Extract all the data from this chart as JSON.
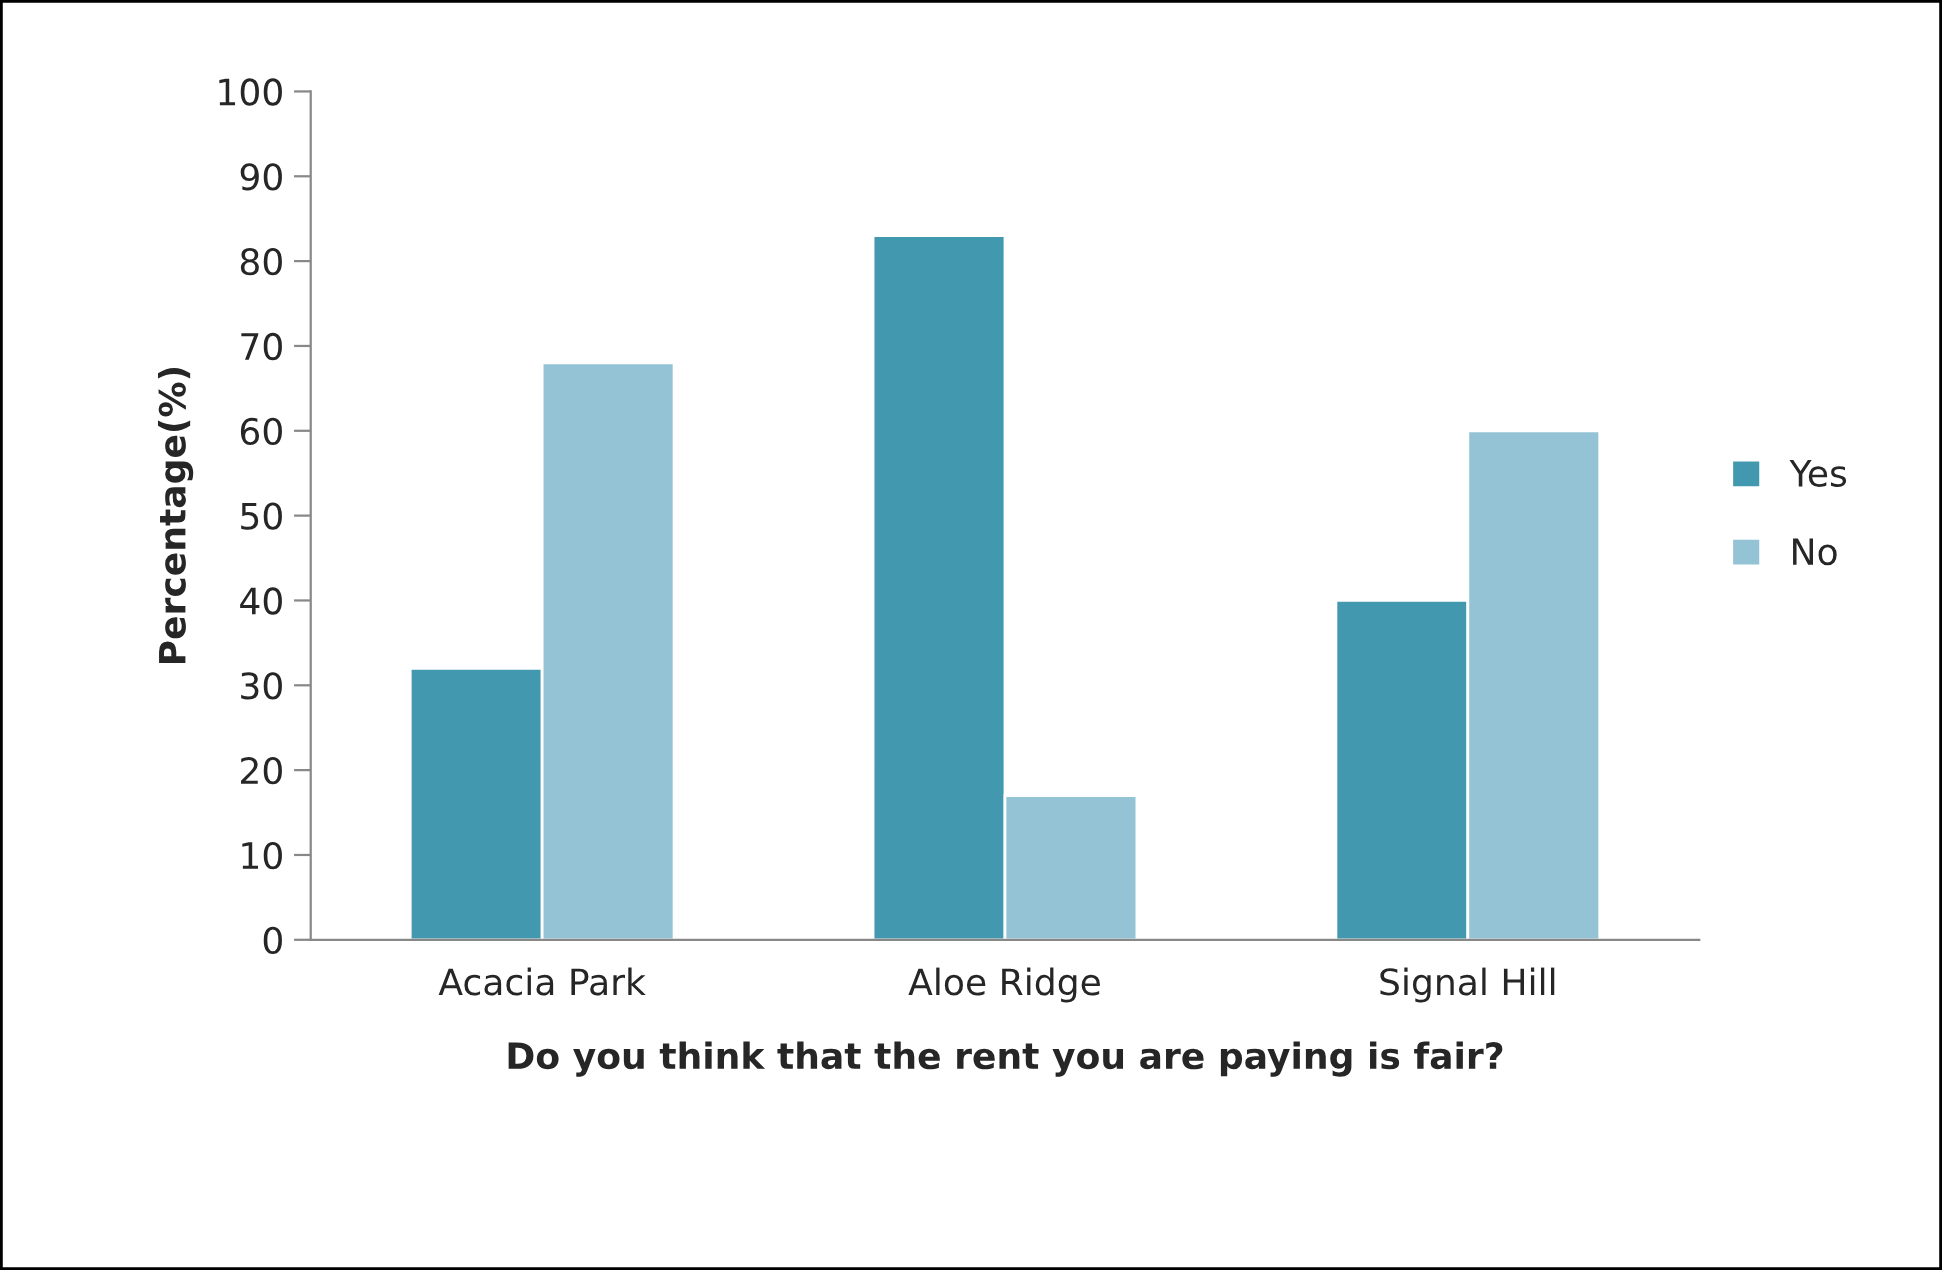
{
  "chart_data": {
    "type": "bar",
    "categories": [
      "Acacia Park",
      "Aloe Ridge",
      "Signal Hill"
    ],
    "series": [
      {
        "name": "Yes",
        "color": "#4298ae",
        "values": [
          32,
          83,
          40
        ]
      },
      {
        "name": "No",
        "color": "#93c3d4",
        "values": [
          68,
          17,
          60
        ]
      }
    ],
    "xlabel": "Do you think that the rent you are paying is fair?",
    "ylabel": "Percentage(%)",
    "ylim": [
      0,
      100
    ],
    "yticks": [
      0,
      10,
      20,
      30,
      40,
      50,
      60,
      70,
      80,
      90,
      100
    ],
    "grid": false,
    "legend": "right"
  }
}
